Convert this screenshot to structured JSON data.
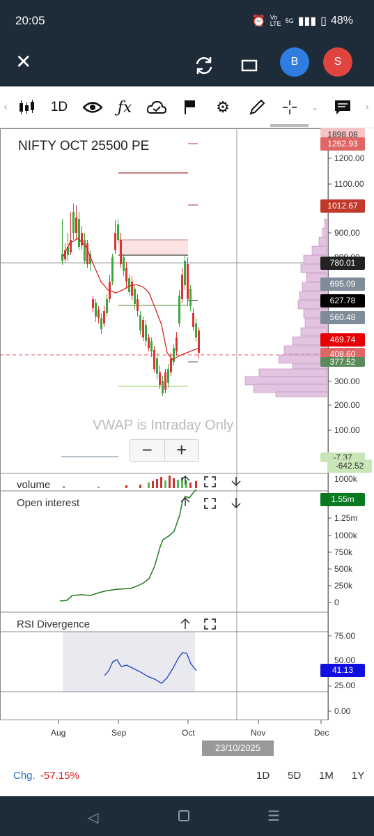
{
  "status": {
    "time": "20:05",
    "battery": "48%",
    "network": "5G",
    "volte": "Vo LTE"
  },
  "appbar": {
    "avatar1": "B",
    "avatar2": "S"
  },
  "toolbar": {
    "interval": "1D"
  },
  "chart": {
    "title": "NIFTY OCT 25500 PE",
    "vwap_note": "VWAP is Intraday Only",
    "zoom_minus": "−",
    "zoom_plus": "+",
    "price_axis": [
      "1200.00",
      "1100.00",
      "900.00",
      "800.00",
      "300.00",
      "200.00",
      "100.00"
    ],
    "price_tags": [
      {
        "label": "1898.08",
        "color": "#f7c4c4",
        "text": "#333"
      },
      {
        "label": "1262.93",
        "color": "#e06666",
        "text": "#fff"
      },
      {
        "label": "1012.67",
        "color": "#c0392b",
        "text": "#fff"
      },
      {
        "label": "780.01",
        "color": "#222222",
        "text": "#fff"
      },
      {
        "label": "695.09",
        "color": "#7f8c9a",
        "text": "#fff"
      },
      {
        "label": "627.78",
        "color": "#000000",
        "text": "#fff"
      },
      {
        "label": "560.48",
        "color": "#7f8c9a",
        "text": "#fff"
      },
      {
        "label": "469.74",
        "color": "#e60000",
        "text": "#fff"
      },
      {
        "label": "408.60",
        "color": "#e06666",
        "text": "#fff"
      },
      {
        "label": "377.52",
        "color": "#5a8a5a",
        "text": "#fff"
      },
      {
        "label": "-7.37",
        "color": "#c9e6b8",
        "text": "#333"
      },
      {
        "label": "-642.52",
        "color": "#c9e6b8",
        "text": "#333"
      }
    ],
    "volume_label": "volume",
    "volume_axis": "1000k",
    "oi_label": "Open interest",
    "oi_tag": "1.55m",
    "oi_axis": [
      "1.25m",
      "1000k",
      "750k",
      "500k",
      "250k",
      "0"
    ],
    "rsi_label": "RSI Divergence",
    "rsi_tag": "41.13",
    "rsi_axis": [
      "75.00",
      "50.00",
      "25.00",
      "0.00"
    ],
    "x_labels": [
      "Aug",
      "Sep",
      "Oct",
      "Nov",
      "Dec"
    ],
    "date_chip": "23/10/2025"
  },
  "footer": {
    "chg_label": "Chg.",
    "chg_value": "-57.15%",
    "ranges": [
      "1D",
      "5D",
      "1M",
      "1Y"
    ]
  },
  "colors": {
    "bar_bg": "#1e2b38",
    "blue_avatar": "#2f7de1",
    "red_avatar": "#e0443e"
  }
}
